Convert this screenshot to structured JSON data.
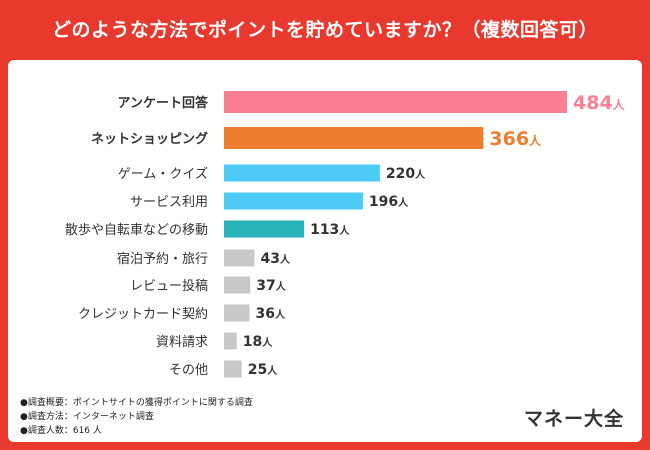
{
  "header": {
    "title": "どのような方法でポイントを貯めていますか？（複数回答可）"
  },
  "chart_data": {
    "type": "bar",
    "orientation": "horizontal",
    "title": "どのような方法でポイントを貯めていますか？（複数回答可）",
    "unit": "人",
    "xlim": [
      0,
      484
    ],
    "categories": [
      "アンケート回答",
      "ネットショッピング",
      "ゲーム・クイズ",
      "サービス利用",
      "散歩や自転車などの移動",
      "宿泊予約・旅行",
      "レビュー投稿",
      "クレジットカード契約",
      "資料請求",
      "その他"
    ],
    "values": [
      484,
      366,
      220,
      196,
      113,
      43,
      37,
      36,
      18,
      25
    ],
    "colors": [
      "#fb7f93",
      "#ef7d2f",
      "#4ecbf4",
      "#4ecbf4",
      "#27b3b8",
      "#c7c8ca",
      "#c7c8ca",
      "#c7c8ca",
      "#c7c8ca",
      "#c7c8ca"
    ],
    "highlight": [
      true,
      true,
      false,
      false,
      false,
      false,
      false,
      false,
      false,
      false
    ]
  },
  "footnotes": [
    "●調査概要：ポイントサイトの獲得ポイントに関する調査",
    "●調査方法：インターネット調査",
    "●調査人数：616 人"
  ],
  "brand": "マネー大全"
}
